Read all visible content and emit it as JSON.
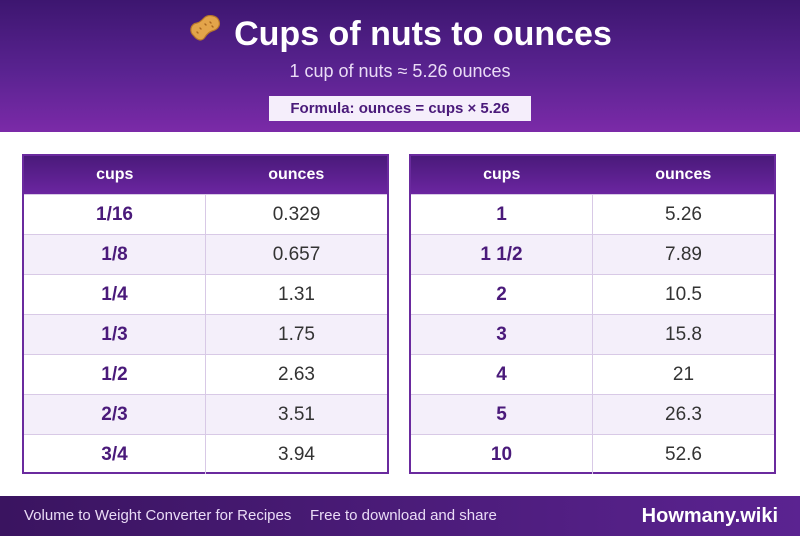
{
  "header": {
    "title": "Cups of nuts to ounces",
    "subtitle": "1 cup of nuts ≈ 5.26 ounces",
    "formula": "Formula: ounces = cups × 5.26",
    "icon": "peanut-icon"
  },
  "tables": {
    "left": {
      "headers": [
        "cups",
        "ounces"
      ],
      "rows": [
        [
          "1/16",
          "0.329"
        ],
        [
          "1/8",
          "0.657"
        ],
        [
          "1/4",
          "1.31"
        ],
        [
          "1/3",
          "1.75"
        ],
        [
          "1/2",
          "2.63"
        ],
        [
          "2/3",
          "3.51"
        ],
        [
          "3/4",
          "3.94"
        ]
      ]
    },
    "right": {
      "headers": [
        "cups",
        "ounces"
      ],
      "rows": [
        [
          "1",
          "5.26"
        ],
        [
          "1 1/2",
          "7.89"
        ],
        [
          "2",
          "10.5"
        ],
        [
          "3",
          "15.8"
        ],
        [
          "4",
          "21"
        ],
        [
          "5",
          "26.3"
        ],
        [
          "10",
          "52.6"
        ]
      ]
    }
  },
  "footer": {
    "left_text": "Volume to Weight Converter for Recipes",
    "middle_text": "Free to download and share",
    "brand": "Howmany.wiki"
  }
}
